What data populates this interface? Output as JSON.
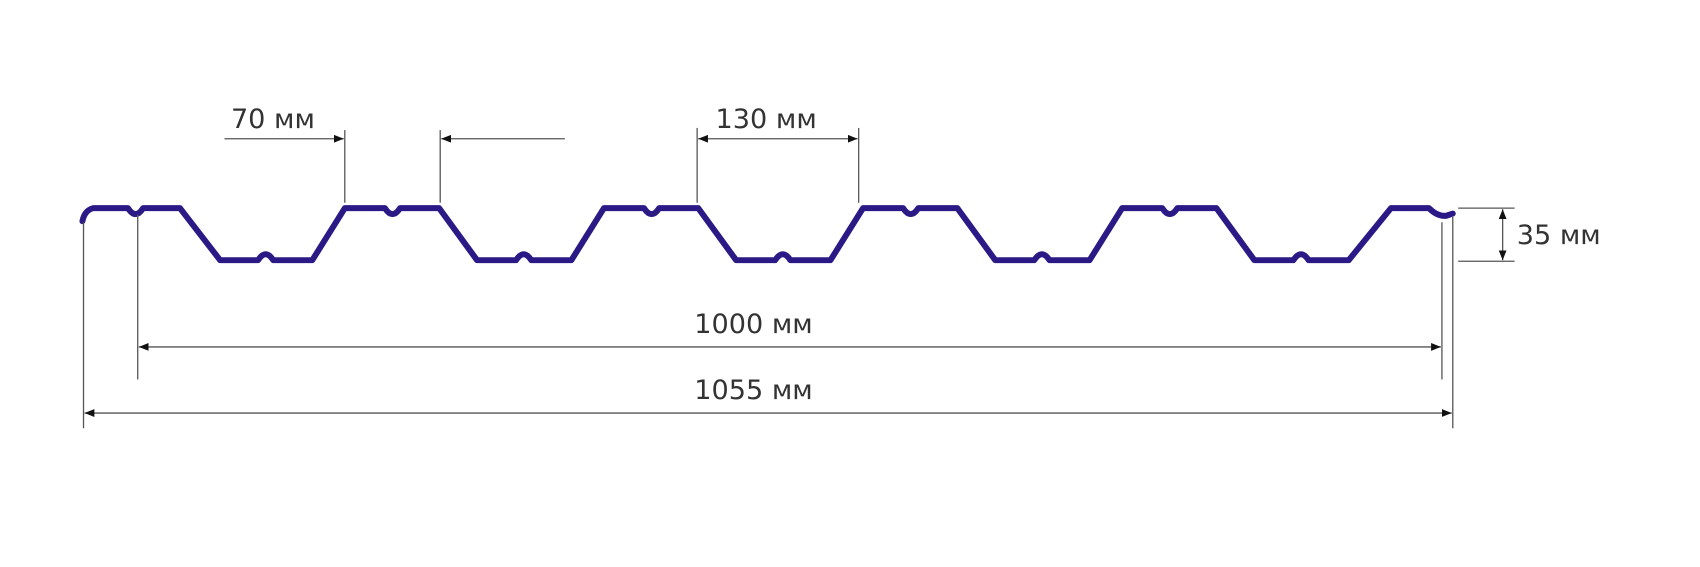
{
  "colors": {
    "profile": "#2b1a86",
    "dimension": "#555555",
    "text": "#333333"
  },
  "labels": {
    "crest_width": "70 мм",
    "rib_pitch": "130 мм",
    "height": "35 мм",
    "useful_width": "1000 мм",
    "total_width": "1055 мм"
  }
}
